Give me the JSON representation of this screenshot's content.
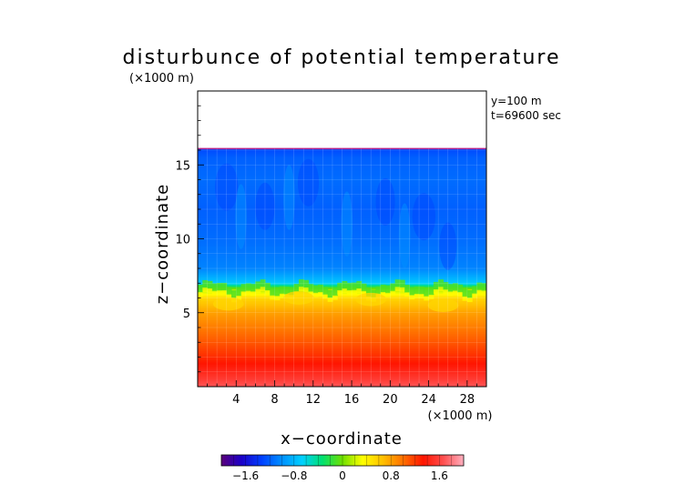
{
  "chart_data": {
    "type": "heatmap",
    "title": "disturbunce of potential temperature",
    "ylabel": "z−coordinate",
    "xlabel": "x−coordinate",
    "y_unit": "(×1000 m)",
    "x_unit": "(×1000 m)",
    "annotations": [
      "y=100 m",
      "t=69600 sec"
    ],
    "xlim": [
      0,
      30
    ],
    "ylim": [
      0,
      20
    ],
    "x_ticks": [
      4,
      8,
      12,
      16,
      20,
      24,
      28
    ],
    "y_ticks": [
      5,
      10,
      15
    ],
    "grid": true,
    "model_top_km": 16.1,
    "tropopause_km": 6.7,
    "colorbar": {
      "range": [
        -2.0,
        2.0
      ],
      "ticks": [
        -1.6,
        -0.8,
        0,
        0.8,
        1.6
      ],
      "tick_labels": [
        "−1.6",
        "−0.8",
        "0",
        "0.8",
        "1.6"
      ],
      "placement": "bottom"
    },
    "field_profile": {
      "z_km": [
        0,
        0.5,
        1,
        2,
        3,
        4,
        5,
        6,
        6.6,
        7,
        8,
        10,
        12,
        14,
        15.5,
        16.1
      ],
      "value": [
        1.7,
        1.55,
        1.45,
        1.25,
        1.1,
        0.95,
        0.8,
        0.55,
        0.1,
        -0.7,
        -1.05,
        -1.15,
        -1.2,
        -1.15,
        -1.2,
        -1.3
      ]
    }
  },
  "colors": {
    "scale": [
      "#5a007a",
      "#1b00c8",
      "#0040ff",
      "#0090ff",
      "#00d0ff",
      "#00e070",
      "#70e000",
      "#ffff00",
      "#ffc000",
      "#ff7000",
      "#ff1500",
      "#ff5050",
      "#ffb0c0"
    ],
    "top_line": "#b0208a"
  }
}
